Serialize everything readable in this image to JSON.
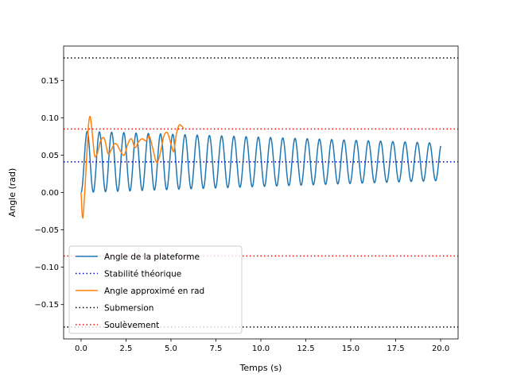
{
  "chart_data": {
    "type": "line",
    "title": "",
    "xlabel": "Temps (s)",
    "ylabel": "Angle (rad)",
    "xlim": [
      -0.97,
      20.97
    ],
    "ylim": [
      -0.196,
      0.196
    ],
    "xticks": [
      0.0,
      2.5,
      5.0,
      7.5,
      10.0,
      12.5,
      15.0,
      17.5,
      20.0
    ],
    "xtick_labels": [
      "0.0",
      "2.5",
      "5.0",
      "7.5",
      "10.0",
      "12.5",
      "15.0",
      "17.5",
      "20.0"
    ],
    "yticks": [
      -0.15,
      -0.1,
      -0.05,
      0.0,
      0.05,
      0.1,
      0.15
    ],
    "ytick_labels": [
      "−0.15",
      "−0.10",
      "−0.05",
      "0.00",
      "0.05",
      "0.10",
      "0.15"
    ],
    "grid": false,
    "legend_position": "lower-left",
    "series": [
      {
        "name": "Angle de la plateforme",
        "color": "#1f77b4",
        "style": "solid",
        "oscillation": {
          "t_start": 0.0,
          "t_end": 20.0,
          "center": 0.041,
          "amplitude_start": 0.041,
          "amplitude_end": 0.025,
          "period": 0.68
        }
      },
      {
        "name": "Stabilité théorique",
        "color": "#0000cc",
        "style": "dotted",
        "hline": 0.041
      },
      {
        "name": "Angle approximé en rad",
        "color": "#ff7f0e",
        "style": "solid",
        "x": [
          0.0,
          0.1,
          0.25,
          0.4,
          0.5,
          0.6,
          0.75,
          0.9,
          1.1,
          1.3,
          1.5,
          1.7,
          1.85,
          2.0,
          2.2,
          2.4,
          2.6,
          2.8,
          3.0,
          3.2,
          3.4,
          3.6,
          3.8,
          4.0,
          4.2,
          4.4,
          4.6,
          4.8,
          5.0,
          5.15,
          5.3,
          5.45,
          5.6,
          5.7
        ],
        "y": [
          0.0,
          -0.034,
          0.02,
          0.085,
          0.102,
          0.085,
          0.05,
          0.052,
          0.07,
          0.072,
          0.052,
          0.058,
          0.065,
          0.064,
          0.055,
          0.05,
          0.065,
          0.072,
          0.06,
          0.068,
          0.072,
          0.069,
          0.075,
          0.058,
          0.04,
          0.052,
          0.075,
          0.08,
          0.065,
          0.055,
          0.078,
          0.09,
          0.089,
          0.085
        ]
      },
      {
        "name": "Submersion",
        "color": "#000000",
        "style": "dotted",
        "hlines": [
          0.18,
          -0.18
        ]
      },
      {
        "name": "Soulèvement",
        "color": "#ff0000",
        "style": "dotted",
        "hlines": [
          0.085,
          -0.085
        ]
      }
    ]
  }
}
